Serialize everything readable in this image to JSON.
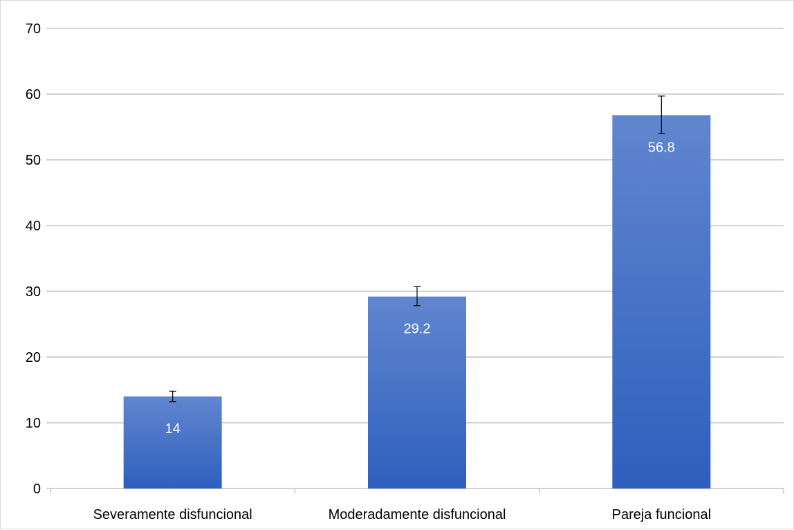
{
  "chart_data": {
    "type": "bar",
    "title": "",
    "xlabel": "",
    "ylabel": "",
    "categories": [
      "Severamente disfuncional",
      "Moderadamente disfuncional",
      "Pareja funcional"
    ],
    "values": [
      14,
      29.2,
      56.8
    ],
    "data_labels": [
      "14",
      "29.2",
      "56.8"
    ],
    "error_bars": [
      {
        "low": 13.2,
        "high": 14.8
      },
      {
        "low": 27.8,
        "high": 30.7
      },
      {
        "low": 54.0,
        "high": 59.7
      }
    ],
    "ylim": [
      0,
      70
    ],
    "yticks": [
      0,
      10,
      20,
      30,
      40,
      50,
      60,
      70
    ],
    "grid": true,
    "legend": "none",
    "colors": {
      "bar_top": "#6186cf",
      "bar_bottom": "#2e5fbd",
      "grid": "#a6a6a6",
      "axis": "#a6a6a6",
      "error_bar": "#000000",
      "data_label": "#ffffff"
    }
  }
}
